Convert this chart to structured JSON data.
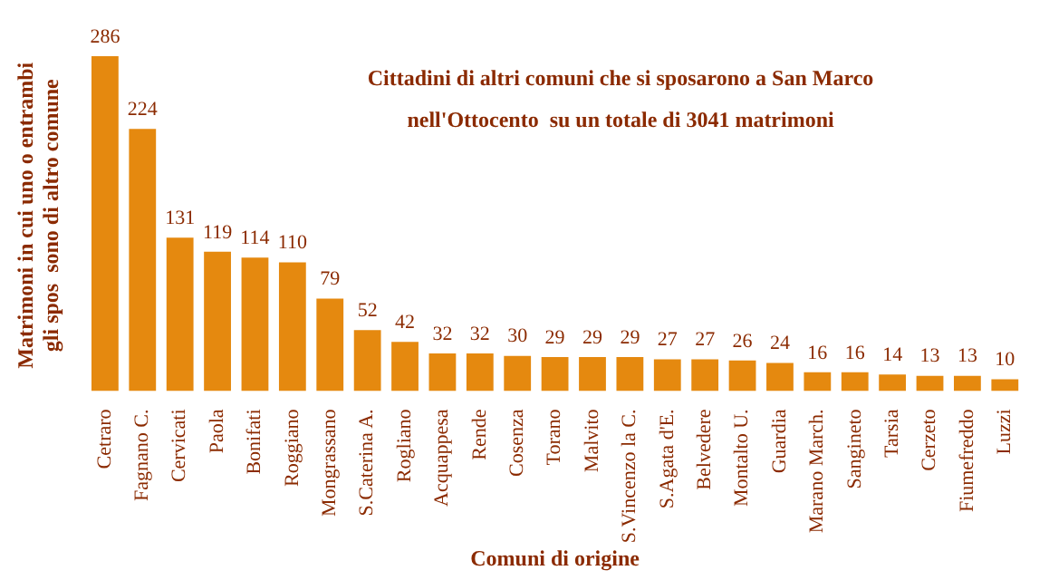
{
  "chart_data": {
    "type": "bar",
    "title": "Cittadini di altri comuni che si sposarono a San Marco\nnell'Ottocento  su un totale di 3041 matrimoni",
    "xlabel": "Comuni di origine",
    "ylabel": "Matrimoni in cui uno o entrambi\ngli spos  sono di altro comune",
    "categories": [
      "Cetraro",
      "Fagnano C.",
      "Cervicati",
      "Paola",
      "Bonifati",
      "Roggiano",
      "Mongrassano",
      "S.Caterina A.",
      "Rogliano",
      "Acquappesa",
      "Rende",
      "Cosenza",
      "Torano",
      "Malvito",
      "S.Vincenzo la C.",
      "S.Agata d'E.",
      "Belvedere",
      "Montalto U.",
      "Guardia",
      "Marano March.",
      "Sangineto",
      "Tarsia",
      "Cerzeto",
      "Fiumefreddo",
      "Luzzi"
    ],
    "values": [
      286,
      224,
      131,
      119,
      114,
      110,
      79,
      52,
      42,
      32,
      32,
      30,
      29,
      29,
      29,
      27,
      27,
      26,
      24,
      16,
      16,
      14,
      13,
      13,
      10
    ],
    "color": "#e5890f",
    "data_labels": true,
    "grid": false,
    "legend": false
  }
}
